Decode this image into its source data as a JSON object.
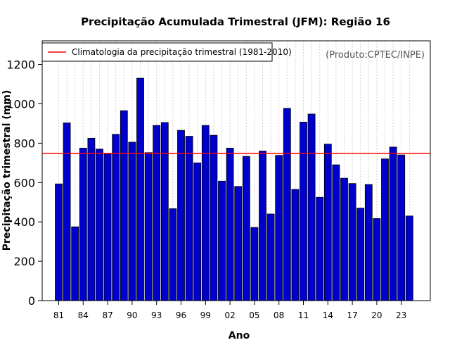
{
  "chart_data": {
    "type": "bar",
    "title": "Precipitação Acumulada Trimestral (JFM): Região 16",
    "xlabel": "Ano",
    "ylabel": "Precipitação trimestral (mm)",
    "credit": "(Produto:CPTEC/INPE)",
    "categories": [
      "1981",
      "1982",
      "1983",
      "1984",
      "1985",
      "1986",
      "1987",
      "1988",
      "1989",
      "1990",
      "1991",
      "1992",
      "1993",
      "1994",
      "1995",
      "1996",
      "1997",
      "1998",
      "1999",
      "2000",
      "2001",
      "2002",
      "2003",
      "2004",
      "2005",
      "2006",
      "2007",
      "2008",
      "2009",
      "2010",
      "2011",
      "2012",
      "2013",
      "2014",
      "2015",
      "2016",
      "2017",
      "2018",
      "2019",
      "2020",
      "2021",
      "2022",
      "2023",
      "2024"
    ],
    "values": [
      593,
      903,
      375,
      775,
      825,
      770,
      745,
      845,
      965,
      805,
      1130,
      752,
      890,
      905,
      467,
      865,
      835,
      700,
      890,
      840,
      607,
      775,
      580,
      733,
      372,
      760,
      440,
      738,
      977,
      565,
      907,
      948,
      525,
      795,
      690,
      622,
      595,
      470,
      590,
      417,
      720,
      780,
      740,
      430
    ],
    "x_tick_labels": [
      "81",
      "84",
      "87",
      "90",
      "93",
      "96",
      "99",
      "02",
      "05",
      "08",
      "11",
      "14",
      "17",
      "20",
      "23"
    ],
    "x_tick_indices": [
      0,
      3,
      6,
      9,
      12,
      15,
      18,
      21,
      24,
      27,
      30,
      33,
      36,
      39,
      42
    ],
    "y_ticks": [
      0,
      200,
      400,
      600,
      800,
      1000,
      1200
    ],
    "y_tick_labels": [
      "0",
      "200",
      "400",
      "600",
      "800",
      "1000",
      "1200"
    ],
    "ylim": [
      0,
      1320
    ],
    "reference_line": {
      "value": 748,
      "label": "Climatologia da precipitação trimestral (1981-2010)",
      "color": "#ff0000"
    },
    "bar_color": "#0000cd",
    "bar_edge_color": "#000000",
    "grid": true,
    "legend_position": "top-left"
  }
}
